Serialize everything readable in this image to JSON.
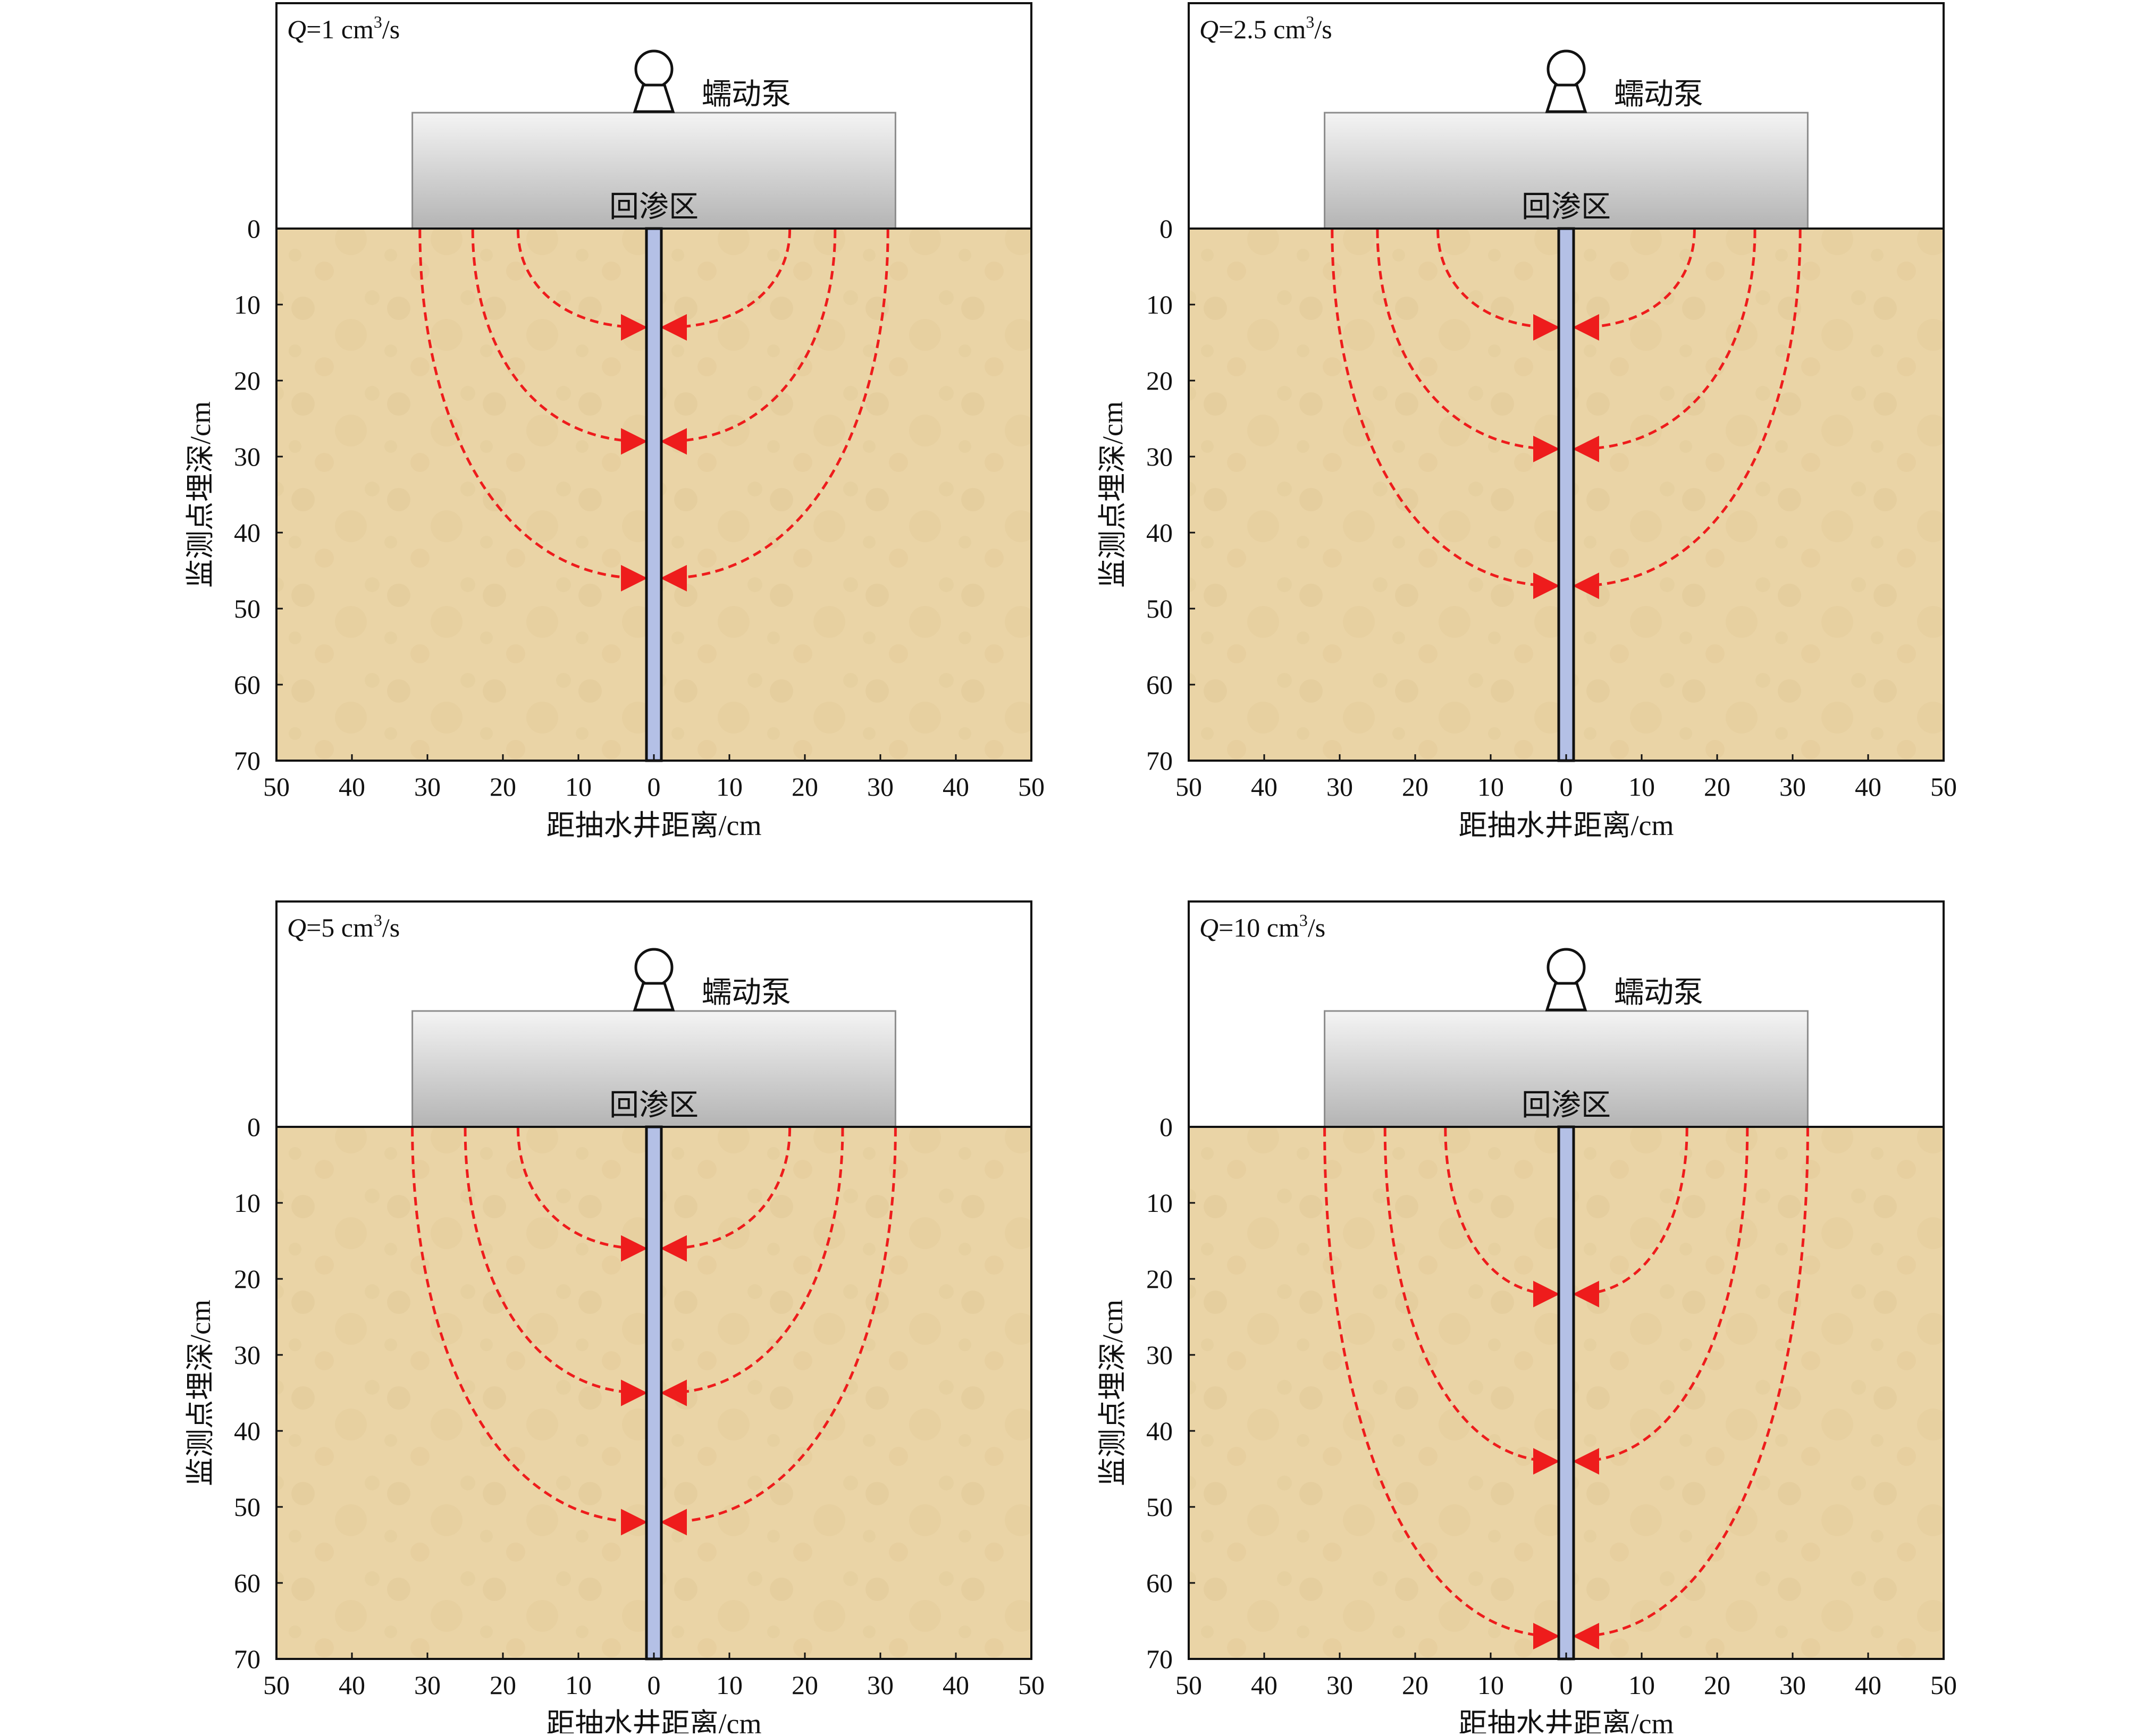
{
  "colors": {
    "soil": "#ead4a6",
    "soil_dark": "#d9bd86",
    "zone_top": "#f4f4f4",
    "zone_bottom": "#b4b4b4",
    "well": "#b4c0e6",
    "flow": "#ee1c1c"
  },
  "labels": {
    "pump": "蠕动泵",
    "zone": "回渗区",
    "xlabel": "距抽水井距离/cm",
    "ylabel": "监测点埋深/cm"
  },
  "x_ticks": [
    "50",
    "40",
    "30",
    "20",
    "10",
    "0",
    "10",
    "20",
    "30",
    "40",
    "50"
  ],
  "y_ticks": [
    "0",
    "10",
    "20",
    "30",
    "40",
    "50",
    "60",
    "70"
  ],
  "chart_data": [
    {
      "type": "diagram",
      "q_var": "Q",
      "q_value": "=1 cm",
      "q_sup": "3",
      "q_unit": "/s",
      "recharge_zone_x": [
        -32,
        32
      ],
      "flow_paths": [
        {
          "start_x": 18,
          "end_depth": 13
        },
        {
          "start_x": 24,
          "end_depth": 28
        },
        {
          "start_x": 31,
          "end_depth": 46
        }
      ]
    },
    {
      "type": "diagram",
      "q_var": "Q",
      "q_value": "=2.5 cm",
      "q_sup": "3",
      "q_unit": "/s",
      "recharge_zone_x": [
        -32,
        32
      ],
      "flow_paths": [
        {
          "start_x": 17,
          "end_depth": 13
        },
        {
          "start_x": 25,
          "end_depth": 29
        },
        {
          "start_x": 31,
          "end_depth": 47
        }
      ]
    },
    {
      "type": "diagram",
      "q_var": "Q",
      "q_value": "=5 cm",
      "q_sup": "3",
      "q_unit": "/s",
      "recharge_zone_x": [
        -32,
        32
      ],
      "flow_paths": [
        {
          "start_x": 18,
          "end_depth": 16
        },
        {
          "start_x": 25,
          "end_depth": 35
        },
        {
          "start_x": 32,
          "end_depth": 52
        }
      ]
    },
    {
      "type": "diagram",
      "q_var": "Q",
      "q_value": "=10 cm",
      "q_sup": "3",
      "q_unit": "/s",
      "recharge_zone_x": [
        -32,
        32
      ],
      "flow_paths": [
        {
          "start_x": 16,
          "end_depth": 22
        },
        {
          "start_x": 24,
          "end_depth": 44
        },
        {
          "start_x": 32,
          "end_depth": 67
        }
      ]
    }
  ]
}
